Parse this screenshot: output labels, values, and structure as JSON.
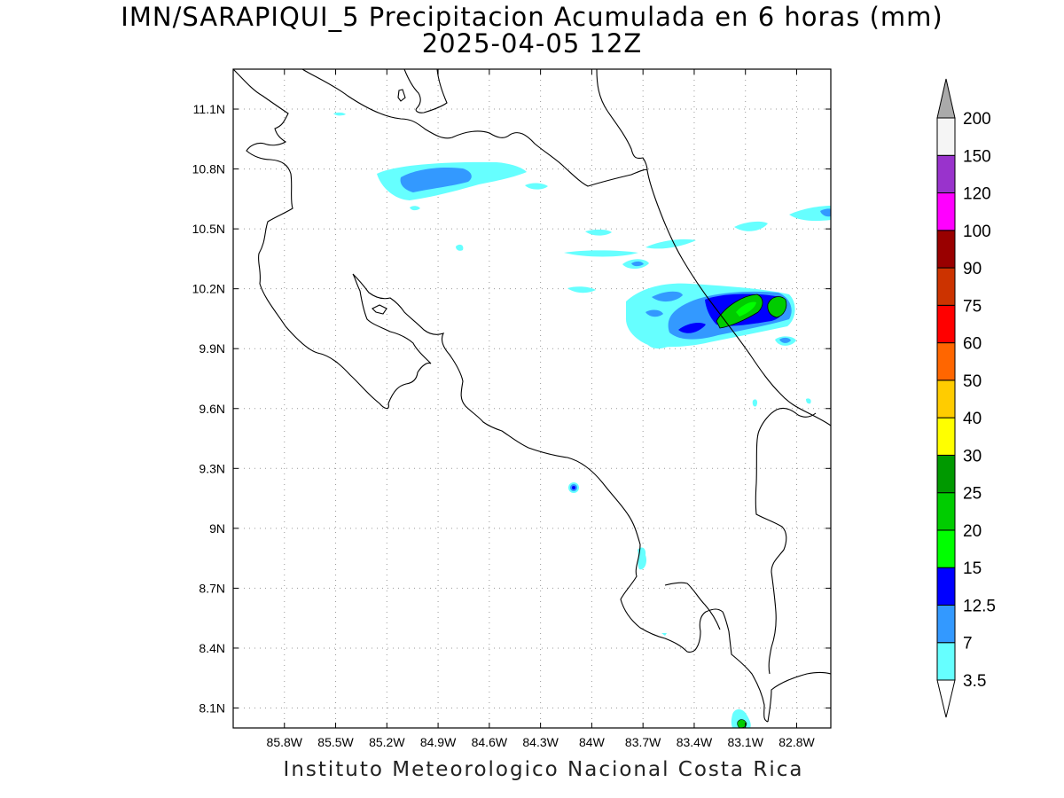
{
  "title": {
    "line1": "IMN/SARAPIQUI_5 Precipitacion Acumulada en 6 horas (mm)",
    "line2": "2025-04-05 12Z"
  },
  "footer": "Instituto Meteorologico Nacional Costa Rica",
  "map": {
    "lon_range": [
      -86.1,
      -82.6
    ],
    "lat_range": [
      8.0,
      11.3
    ],
    "lon_ticks": [
      {
        "value": -85.8,
        "label": "85.8W"
      },
      {
        "value": -85.5,
        "label": "85.5W"
      },
      {
        "value": -85.2,
        "label": "85.2W"
      },
      {
        "value": -84.9,
        "label": "84.9W"
      },
      {
        "value": -84.6,
        "label": "84.6W"
      },
      {
        "value": -84.3,
        "label": "84.3W"
      },
      {
        "value": -84.0,
        "label": "84W"
      },
      {
        "value": -83.7,
        "label": "83.7W"
      },
      {
        "value": -83.4,
        "label": "83.4W"
      },
      {
        "value": -83.1,
        "label": "83.1W"
      },
      {
        "value": -82.8,
        "label": "82.8W"
      }
    ],
    "lat_ticks": [
      {
        "value": 11.1,
        "label": "11.1N"
      },
      {
        "value": 10.8,
        "label": "10.8N"
      },
      {
        "value": 10.5,
        "label": "10.5N"
      },
      {
        "value": 10.2,
        "label": "10.2N"
      },
      {
        "value": 9.9,
        "label": "9.9N"
      },
      {
        "value": 9.6,
        "label": "9.6N"
      },
      {
        "value": 9.3,
        "label": "9.3N"
      },
      {
        "value": 9.0,
        "label": "9N"
      },
      {
        "value": 8.7,
        "label": "8.7N"
      },
      {
        "value": 8.4,
        "label": "8.4N"
      },
      {
        "value": 8.1,
        "label": "8.1N"
      }
    ],
    "grid": true
  },
  "colorbar": {
    "levels": [
      {
        "label": "3.5",
        "color": "#66ffff"
      },
      {
        "label": "7",
        "color": "#3399ff"
      },
      {
        "label": "12.5",
        "color": "#0000ff"
      },
      {
        "label": "15",
        "color": "#00ff00"
      },
      {
        "label": "20",
        "color": "#00cc00"
      },
      {
        "label": "25",
        "color": "#009900"
      },
      {
        "label": "30",
        "color": "#ffff00"
      },
      {
        "label": "40",
        "color": "#ffcc00"
      },
      {
        "label": "50",
        "color": "#ff6600"
      },
      {
        "label": "60",
        "color": "#ff0000"
      },
      {
        "label": "75",
        "color": "#cc3300"
      },
      {
        "label": "90",
        "color": "#990000"
      },
      {
        "label": "100",
        "color": "#ff00ff"
      },
      {
        "label": "120",
        "color": "#9933cc"
      },
      {
        "label": "150",
        "color": "#f5f5f5"
      },
      {
        "label": "200",
        "color": "#aaaaaa"
      }
    ]
  }
}
